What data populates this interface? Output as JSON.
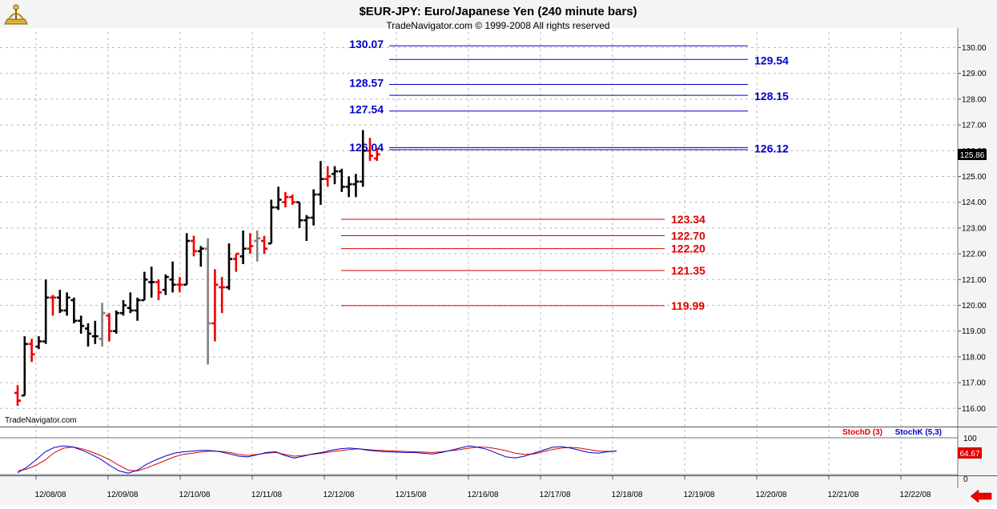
{
  "header": {
    "title": "$EUR-JPY:  Euro/Japanese Yen  (240 minute bars)",
    "copyright": "TradeNavigator.com © 1999-2008 All rights reserved",
    "watermark": "TradeNavigator.com"
  },
  "colors": {
    "up_bar": "#000000",
    "down_bar": "#ee0000",
    "neutral_bar": "#808080",
    "resistance": "#0000cc",
    "support": "#dd0000",
    "stoch_d": "#dd0000",
    "stoch_k": "#0000cc",
    "background": "#ffffff",
    "grid": "#b8b8b8"
  },
  "chart_data": [
    {
      "type": "ohlc",
      "title": "$EUR-JPY:  Euro/Japanese Yen  (240 minute bars)",
      "ylim": [
        115.6,
        130.5
      ],
      "y_ticks": [
        "130.00",
        "129.00",
        "128.00",
        "127.00",
        "126.00",
        "125.00",
        "124.00",
        "123.00",
        "122.00",
        "121.00",
        "120.00",
        "119.00",
        "118.00",
        "117.00",
        "116.00"
      ],
      "x_tick_labels": [
        "12/08/08",
        "12/09/08",
        "12/10/08",
        "12/11/08",
        "12/12/08",
        "12/15/08",
        "12/16/08",
        "12/17/08",
        "12/18/08",
        "12/19/08",
        "12/20/08",
        "12/21/08",
        "12/22/08"
      ],
      "last_price": "125.86",
      "bars": [
        {
          "o": 116.6,
          "h": 116.9,
          "l": 116.1,
          "c": 116.3,
          "col": "down"
        },
        {
          "o": 116.5,
          "h": 118.8,
          "l": 116.5,
          "c": 118.5,
          "col": "up"
        },
        {
          "o": 118.5,
          "h": 118.7,
          "l": 117.8,
          "c": 118.1,
          "col": "down"
        },
        {
          "o": 118.4,
          "h": 118.8,
          "l": 118.3,
          "c": 118.6,
          "col": "up"
        },
        {
          "o": 118.6,
          "h": 121.0,
          "l": 118.5,
          "c": 120.3,
          "col": "up"
        },
        {
          "o": 120.3,
          "h": 120.4,
          "l": 119.6,
          "c": 120.3,
          "col": "down"
        },
        {
          "o": 120.3,
          "h": 120.6,
          "l": 119.7,
          "c": 119.8,
          "col": "up"
        },
        {
          "o": 119.8,
          "h": 120.5,
          "l": 119.6,
          "c": 120.3,
          "col": "up"
        },
        {
          "o": 120.2,
          "h": 120.3,
          "l": 119.3,
          "c": 119.4,
          "col": "up"
        },
        {
          "o": 119.4,
          "h": 119.6,
          "l": 118.9,
          "c": 119.2,
          "col": "up"
        },
        {
          "o": 119.1,
          "h": 119.3,
          "l": 118.4,
          "c": 118.9,
          "col": "up"
        },
        {
          "o": 118.8,
          "h": 119.4,
          "l": 118.5,
          "c": 118.8,
          "col": "up"
        },
        {
          "o": 118.7,
          "h": 120.1,
          "l": 118.4,
          "c": 119.7,
          "col": "neutral"
        },
        {
          "o": 119.6,
          "h": 119.7,
          "l": 118.6,
          "c": 119.0,
          "col": "down"
        },
        {
          "o": 119.0,
          "h": 119.8,
          "l": 118.9,
          "c": 119.7,
          "col": "up"
        },
        {
          "o": 119.7,
          "h": 120.2,
          "l": 119.6,
          "c": 120.0,
          "col": "up"
        },
        {
          "o": 119.9,
          "h": 120.5,
          "l": 119.7,
          "c": 119.8,
          "col": "up"
        },
        {
          "o": 119.8,
          "h": 120.3,
          "l": 119.4,
          "c": 120.2,
          "col": "up"
        },
        {
          "o": 120.2,
          "h": 121.3,
          "l": 120.2,
          "c": 121.0,
          "col": "up"
        },
        {
          "o": 120.9,
          "h": 121.5,
          "l": 120.3,
          "c": 120.9,
          "col": "up"
        },
        {
          "o": 120.9,
          "h": 121.0,
          "l": 120.2,
          "c": 120.5,
          "col": "down"
        },
        {
          "o": 120.6,
          "h": 121.2,
          "l": 120.4,
          "c": 121.1,
          "col": "up"
        },
        {
          "o": 121.0,
          "h": 121.7,
          "l": 120.5,
          "c": 120.8,
          "col": "up"
        },
        {
          "o": 120.8,
          "h": 121.1,
          "l": 120.5,
          "c": 120.8,
          "col": "down"
        },
        {
          "o": 120.8,
          "h": 122.8,
          "l": 120.8,
          "c": 122.5,
          "col": "up"
        },
        {
          "o": 122.5,
          "h": 122.7,
          "l": 121.9,
          "c": 122.1,
          "col": "down"
        },
        {
          "o": 122.1,
          "h": 122.3,
          "l": 121.5,
          "c": 122.2,
          "col": "up"
        },
        {
          "o": 122.2,
          "h": 122.6,
          "l": 117.7,
          "c": 119.3,
          "col": "neutral"
        },
        {
          "o": 119.3,
          "h": 121.4,
          "l": 118.6,
          "c": 120.8,
          "col": "down"
        },
        {
          "o": 120.7,
          "h": 121.1,
          "l": 119.7,
          "c": 120.7,
          "col": "down"
        },
        {
          "o": 120.7,
          "h": 122.4,
          "l": 120.6,
          "c": 121.8,
          "col": "up"
        },
        {
          "o": 121.8,
          "h": 122.0,
          "l": 121.3,
          "c": 122.0,
          "col": "down"
        },
        {
          "o": 121.9,
          "h": 122.9,
          "l": 121.6,
          "c": 122.2,
          "col": "up"
        },
        {
          "o": 122.2,
          "h": 122.8,
          "l": 122.0,
          "c": 122.3,
          "col": "down"
        },
        {
          "o": 122.5,
          "h": 122.9,
          "l": 121.7,
          "c": 122.6,
          "col": "neutral"
        },
        {
          "o": 122.5,
          "h": 122.7,
          "l": 122.0,
          "c": 122.2,
          "col": "down"
        },
        {
          "o": 122.4,
          "h": 124.1,
          "l": 122.4,
          "c": 123.8,
          "col": "up"
        },
        {
          "o": 123.8,
          "h": 124.6,
          "l": 123.7,
          "c": 124.1,
          "col": "up"
        },
        {
          "o": 124.0,
          "h": 124.4,
          "l": 123.8,
          "c": 124.2,
          "col": "down"
        },
        {
          "o": 124.2,
          "h": 124.3,
          "l": 123.9,
          "c": 124.0,
          "col": "down"
        },
        {
          "o": 124.0,
          "h": 124.0,
          "l": 123.0,
          "c": 123.3,
          "col": "up"
        },
        {
          "o": 123.3,
          "h": 123.5,
          "l": 122.5,
          "c": 123.4,
          "col": "up"
        },
        {
          "o": 123.4,
          "h": 124.5,
          "l": 123.1,
          "c": 124.3,
          "col": "up"
        },
        {
          "o": 124.3,
          "h": 125.6,
          "l": 123.9,
          "c": 124.9,
          "col": "up"
        },
        {
          "o": 124.9,
          "h": 125.4,
          "l": 124.6,
          "c": 125.0,
          "col": "down"
        },
        {
          "o": 125.1,
          "h": 125.4,
          "l": 124.7,
          "c": 125.2,
          "col": "up"
        },
        {
          "o": 125.2,
          "h": 125.3,
          "l": 124.4,
          "c": 124.6,
          "col": "up"
        },
        {
          "o": 124.6,
          "h": 125.0,
          "l": 124.2,
          "c": 124.7,
          "col": "up"
        },
        {
          "o": 124.7,
          "h": 125.1,
          "l": 124.2,
          "c": 124.8,
          "col": "up"
        },
        {
          "o": 124.8,
          "h": 126.8,
          "l": 124.6,
          "c": 126.0,
          "col": "up"
        },
        {
          "o": 126.0,
          "h": 126.5,
          "l": 125.6,
          "c": 125.8,
          "col": "down"
        },
        {
          "o": 125.7,
          "h": 126.1,
          "l": 125.6,
          "c": 125.86,
          "col": "down"
        }
      ],
      "resistance_levels": [
        {
          "value": 130.07,
          "label": "130.07",
          "side": "left"
        },
        {
          "value": 129.54,
          "label": "129.54",
          "side": "right"
        },
        {
          "value": 128.57,
          "label": "128.57",
          "side": "left"
        },
        {
          "value": 128.15,
          "label": "128.15",
          "side": "right"
        },
        {
          "value": 127.54,
          "label": "127.54",
          "side": "left"
        },
        {
          "value": 126.04,
          "label": "126.04",
          "side": "left"
        },
        {
          "value": 126.12,
          "label": "126.12",
          "side": "right"
        }
      ],
      "support_levels": [
        {
          "value": 123.34,
          "label": "123.34"
        },
        {
          "value": 122.7,
          "label": "122.70"
        },
        {
          "value": 122.2,
          "label": "122.20"
        },
        {
          "value": 121.35,
          "label": "121.35"
        },
        {
          "value": 119.99,
          "label": "119.99"
        }
      ]
    },
    {
      "type": "line",
      "ylim": [
        0,
        100
      ],
      "y_ticks": [
        "100",
        "0"
      ],
      "legend": [
        "StochD (3)",
        "StochK (5,3)"
      ],
      "last_value": "64.67",
      "series": [
        {
          "name": "StochD (3)",
          "values": [
            10,
            15,
            25,
            40,
            60,
            72,
            75,
            70,
            62,
            52,
            40,
            25,
            12,
            10,
            18,
            28,
            38,
            48,
            55,
            58,
            62,
            64,
            63,
            60,
            55,
            52,
            55,
            58,
            60,
            55,
            50,
            52,
            55,
            58,
            62,
            65,
            68,
            70,
            68,
            66,
            65,
            64,
            63,
            62,
            61,
            60,
            62,
            65,
            68,
            72,
            75,
            74,
            70,
            65,
            58,
            55,
            56,
            62,
            68,
            72,
            74,
            72,
            68,
            64,
            63,
            64
          ]
        },
        {
          "name": "StochK (5,3)",
          "values": [
            5,
            20,
            40,
            62,
            74,
            78,
            75,
            66,
            55,
            42,
            25,
            10,
            4,
            12,
            28,
            40,
            50,
            58,
            62,
            64,
            66,
            65,
            62,
            56,
            50,
            48,
            54,
            60,
            62,
            52,
            45,
            50,
            56,
            60,
            66,
            70,
            72,
            70,
            66,
            64,
            62,
            61,
            60,
            60,
            58,
            56,
            60,
            66,
            72,
            78,
            74,
            68,
            58,
            48,
            45,
            50,
            58,
            66,
            74,
            76,
            72,
            66,
            60,
            58,
            62,
            64
          ]
        }
      ]
    }
  ]
}
